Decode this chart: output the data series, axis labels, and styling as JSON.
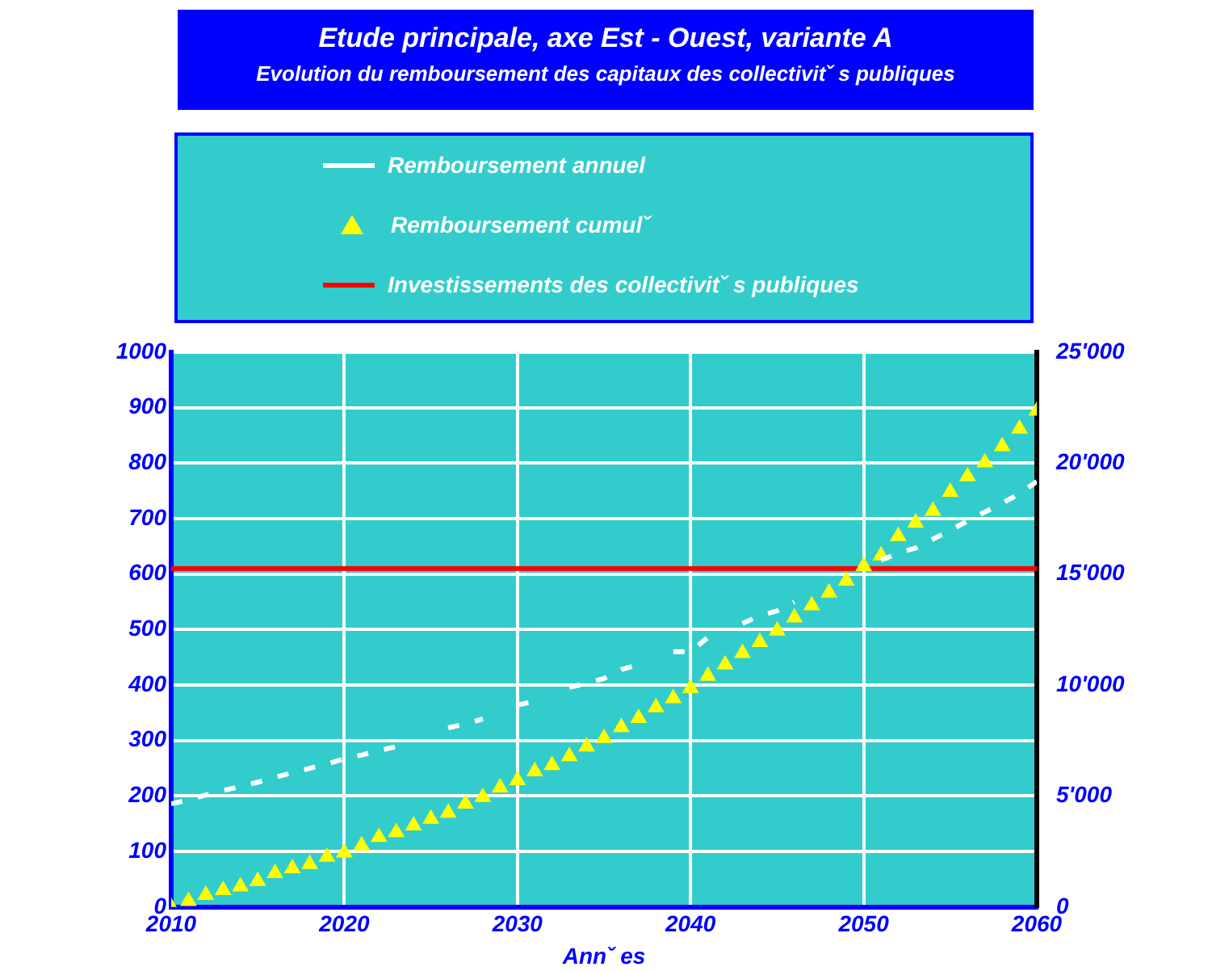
{
  "chart_data": {
    "type": "line",
    "title": "Etude principale, axe Est - Ouest, variante A",
    "subtitle": "Evolution du remboursement des capitaux des collectivitˇ s publiques",
    "xlabel": "Annˇ es",
    "x": [
      2010,
      2011,
      2012,
      2013,
      2014,
      2015,
      2016,
      2017,
      2018,
      2019,
      2020,
      2021,
      2022,
      2023,
      2024,
      2025,
      2026,
      2027,
      2028,
      2029,
      2030,
      2031,
      2032,
      2033,
      2034,
      2035,
      2036,
      2037,
      2038,
      2039,
      2040,
      2041,
      2042,
      2043,
      2044,
      2045,
      2046,
      2047,
      2048,
      2049,
      2050,
      2051,
      2052,
      2053,
      2054,
      2055,
      2056,
      2057,
      2058,
      2059,
      2060
    ],
    "xlim": [
      2010,
      2060
    ],
    "xticks": [
      2010,
      2020,
      2030,
      2040,
      2050,
      2060
    ],
    "ylim": [
      0,
      1000
    ],
    "yticks": [
      0,
      100,
      200,
      300,
      400,
      500,
      600,
      700,
      800,
      900,
      1000
    ],
    "y2lim": [
      0,
      25000
    ],
    "y2ticks": [
      0,
      {
        "value": 5000,
        "label": "5'000"
      },
      {
        "value": 10000,
        "label": "10'000"
      },
      {
        "value": 15000,
        "label": "15'000"
      },
      {
        "value": 20000,
        "label": "20'000"
      },
      {
        "value": 25000,
        "label": "25'000"
      }
    ],
    "grid": true,
    "legend": "top",
    "series": [
      {
        "name": "Remboursement annuel",
        "line_style": "dashed",
        "marker": "none",
        "color": "#ffffff",
        "values": [
          186,
          193,
          202,
          210,
          217,
          225,
          234,
          242,
          250,
          258,
          267,
          274,
          282,
          289,
          null,
          null,
          323,
          330,
          339,
          null,
          364,
          371,
          null,
          396,
          403,
          412,
          428,
          437,
          null,
          460,
          460,
          486,
          null,
          511,
          525,
          534,
          550,
          null,
          null,
          null,
          null,
          625,
          638,
          647,
          663,
          679,
          696,
          712,
          728,
          745,
          767
        ]
      },
      {
        "name": "Remboursement cumulˇ",
        "type": "scatter",
        "marker": "triangle",
        "axis": "y2",
        "color": "#ffff00",
        "values": [
          0,
          270,
          540,
          760,
          920,
          1170,
          1520,
          1740,
          1930,
          2260,
          2450,
          2770,
          3150,
          3370,
          3670,
          3970,
          4240,
          4650,
          4950,
          5380,
          5710,
          6110,
          6390,
          6790,
          7230,
          7610,
          8100,
          8510,
          8990,
          9400,
          9860,
          10410,
          10920,
          11440,
          11930,
          12450,
          13040,
          13590,
          14160,
          14700,
          15350,
          15840,
          16710,
          17310,
          17850,
          18700,
          19400,
          20030,
          20760,
          21550,
          22360
        ]
      }
    ],
    "ref_lines": [
      {
        "axis": "y2",
        "value": 15250,
        "label": "Investissements des collectivitˇ s publiques",
        "color": "#ff0000"
      }
    ]
  }
}
